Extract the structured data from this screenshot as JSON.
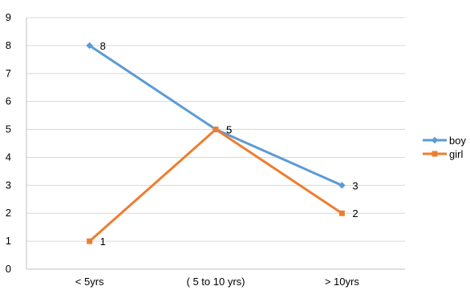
{
  "chart_data": {
    "type": "line",
    "title": "",
    "xlabel": "",
    "ylabel": "",
    "categories": [
      "< 5yrs",
      "( 5 to 10 yrs)",
      "> 10yrs"
    ],
    "ylim": [
      0,
      9
    ],
    "yticks": [
      "0",
      "1",
      "2",
      "3",
      "4",
      "5",
      "6",
      "7",
      "8",
      "9"
    ],
    "grid": "horizontal",
    "legend_position": "right",
    "series": [
      {
        "name": "boy",
        "color": "#5B9BD5",
        "marker": "diamond",
        "values": [
          8,
          5,
          3
        ],
        "labels": [
          "8",
          "5",
          "3"
        ]
      },
      {
        "name": "girl",
        "color": "#ED7D31",
        "marker": "square",
        "values": [
          1,
          5,
          2
        ],
        "labels": [
          "1",
          "5",
          "2"
        ]
      }
    ]
  }
}
